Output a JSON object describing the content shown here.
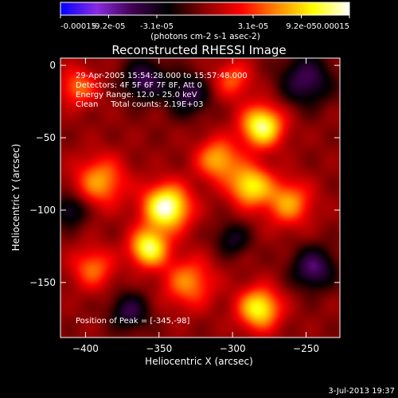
{
  "chart_data": {
    "type": "heatmap",
    "title": "Reconstructed RHESSI Image",
    "xlabel": "Heliocentric X (arcsec)",
    "ylabel": "Heliocentric Y (arcsec)",
    "xlim": [
      -417,
      -227
    ],
    "ylim": [
      -188,
      5
    ],
    "xticks": [
      -400,
      -350,
      -300,
      -250
    ],
    "yticks": [
      0,
      -50,
      -100,
      -150
    ],
    "grid": false,
    "colorbar": {
      "position": "top",
      "range": [
        -0.00015,
        0.00015
      ],
      "tick_labels": [
        "-0.00015",
        "-9.2e-05",
        "-3.1e-05",
        "3.1e-05",
        "9.2e-05",
        "0.00015"
      ],
      "units": "(photons cm-2 s-1 asec-2)",
      "colors": [
        "#0000ff",
        "#8a2be2",
        "#400050",
        "#000000",
        "#8b0000",
        "#ff0000",
        "#ff8800",
        "#ffff00",
        "#ffffff"
      ]
    },
    "annotations": [
      "29-Apr-2005 15:54:28.000 to 15:57:48.000",
      "Detectors: 4F 5F 6F 7F 8F, Att 0",
      "Energy Range: 12.0 - 25.0 keV",
      "Clean     Total counts: 2.19E+03"
    ],
    "peak_label": "Position of Peak = [-345,-98]",
    "peak": {
      "x": -345,
      "y": -98
    },
    "sources": [
      {
        "x": -345,
        "y": -98,
        "sigma": 11,
        "amp": 1.0
      },
      {
        "x": -357,
        "y": -126,
        "sigma": 9,
        "amp": 0.85
      },
      {
        "x": -280,
        "y": -42,
        "sigma": 10,
        "amp": 0.9
      },
      {
        "x": -288,
        "y": -83,
        "sigma": 10,
        "amp": 0.75
      },
      {
        "x": -282,
        "y": -168,
        "sigma": 10,
        "amp": 0.8
      },
      {
        "x": -390,
        "y": -80,
        "sigma": 12,
        "amp": 0.55
      },
      {
        "x": -310,
        "y": -65,
        "sigma": 10,
        "amp": 0.6
      },
      {
        "x": -330,
        "y": -150,
        "sigma": 12,
        "amp": 0.5
      },
      {
        "x": -262,
        "y": -95,
        "sigma": 11,
        "amp": 0.55
      },
      {
        "x": -395,
        "y": -140,
        "sigma": 10,
        "amp": 0.45
      },
      {
        "x": -405,
        "y": -15,
        "sigma": 9,
        "amp": 0.45
      },
      {
        "x": -300,
        "y": -10,
        "sigma": 9,
        "amp": 0.4
      },
      {
        "x": -360,
        "y": -10,
        "sigma": 10,
        "amp": -0.5
      },
      {
        "x": -330,
        "y": -20,
        "sigma": 10,
        "amp": -0.45
      },
      {
        "x": -250,
        "y": -10,
        "sigma": 12,
        "amp": -0.5
      },
      {
        "x": -245,
        "y": -140,
        "sigma": 10,
        "amp": -0.55
      },
      {
        "x": -370,
        "y": -170,
        "sigma": 9,
        "amp": -0.45
      },
      {
        "x": -410,
        "y": -100,
        "sigma": 8,
        "amp": -0.4
      },
      {
        "x": -300,
        "y": -120,
        "sigma": 8,
        "amp": -0.35
      }
    ]
  },
  "footer": {
    "timestamp": "3-Jul-2013 19:37"
  }
}
